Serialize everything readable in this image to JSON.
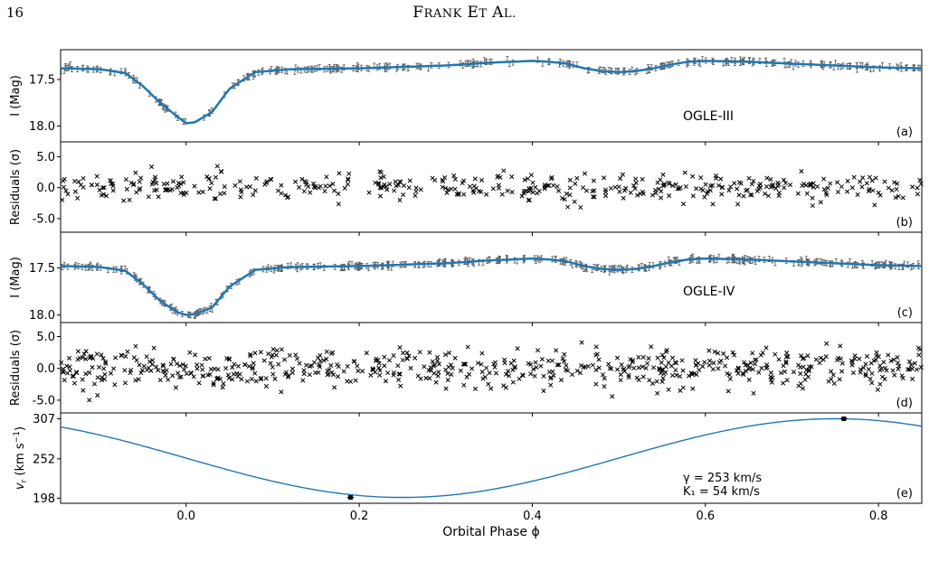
{
  "page_header": {
    "page_number": "16",
    "running_head": "Frank et al."
  },
  "chart_data": [
    {
      "type": "line",
      "panel_label": "(a)",
      "annotation": "OGLE-III",
      "ylabel": "I (Mag)",
      "yticks": [
        "17.5",
        "18.0"
      ],
      "ylim": [
        18.17,
        17.18
      ],
      "xlim": [
        -0.145,
        0.85
      ],
      "series": [
        {
          "values_x": [
            -0.14,
            -0.1,
            -0.07,
            -0.05,
            -0.03,
            -0.01,
            0.0,
            0.01,
            0.03,
            0.05,
            0.08,
            0.12,
            0.2,
            0.3,
            0.35,
            0.4,
            0.42,
            0.44,
            0.46,
            0.48,
            0.5,
            0.52,
            0.54,
            0.56,
            0.58,
            0.6,
            0.65,
            0.7,
            0.75,
            0.8,
            0.85
          ],
          "values_y": [
            17.38,
            17.39,
            17.43,
            17.57,
            17.75,
            17.9,
            17.97,
            17.96,
            17.85,
            17.6,
            17.42,
            17.39,
            17.38,
            17.35,
            17.32,
            17.3,
            17.31,
            17.33,
            17.38,
            17.41,
            17.42,
            17.41,
            17.38,
            17.34,
            17.31,
            17.3,
            17.31,
            17.33,
            17.35,
            17.37,
            17.38
          ]
        }
      ]
    },
    {
      "type": "scatter",
      "panel_label": "(b)",
      "ylabel": "Residuals (σ)",
      "yticks": [
        "5.0",
        "0.0",
        "-5.0"
      ],
      "ylim": [
        -7.2,
        7.4
      ],
      "xlim": [
        -0.145,
        0.85
      ]
    },
    {
      "type": "line",
      "panel_label": "(c)",
      "annotation": "OGLE-IV",
      "ylabel": "I (Mag)",
      "yticks": [
        "17.5",
        "18.0"
      ],
      "ylim": [
        18.08,
        17.12
      ],
      "xlim": [
        -0.145,
        0.85
      ],
      "series": [
        {
          "values_x": [
            -0.14,
            -0.1,
            -0.07,
            -0.05,
            -0.03,
            -0.01,
            0.0,
            0.01,
            0.03,
            0.05,
            0.08,
            0.12,
            0.2,
            0.3,
            0.35,
            0.4,
            0.42,
            0.44,
            0.46,
            0.48,
            0.5,
            0.52,
            0.54,
            0.56,
            0.58,
            0.6,
            0.65,
            0.7,
            0.75,
            0.8,
            0.85
          ],
          "values_y": [
            17.48,
            17.49,
            17.53,
            17.67,
            17.85,
            17.97,
            18.0,
            17.99,
            17.92,
            17.7,
            17.52,
            17.49,
            17.48,
            17.45,
            17.42,
            17.4,
            17.41,
            17.43,
            17.48,
            17.51,
            17.52,
            17.51,
            17.48,
            17.44,
            17.41,
            17.4,
            17.41,
            17.43,
            17.45,
            17.47,
            17.48
          ]
        }
      ]
    },
    {
      "type": "scatter",
      "panel_label": "(d)",
      "ylabel": "Residuals (σ)",
      "yticks": [
        "5.0",
        "0.0",
        "-5.0"
      ],
      "ylim": [
        -7.0,
        7.2
      ],
      "xlim": [
        -0.145,
        0.85
      ]
    },
    {
      "type": "line",
      "panel_label": "(e)",
      "ylabel": "v_r (km s^-1)",
      "yticks": [
        "307",
        "252",
        "198"
      ],
      "ylim": [
        191,
        315
      ],
      "xlim": [
        -0.145,
        0.85
      ],
      "xticks": [
        "0.0",
        "0.2",
        "0.4",
        "0.6",
        "0.8"
      ],
      "xlabel": "Orbital Phase ϕ",
      "annotation_lines": [
        "γ = 253 km/s",
        "K₁ = 54 km/s"
      ],
      "gamma": 253,
      "K1": 54,
      "points": [
        {
          "x": 0.19,
          "y": 199
        },
        {
          "x": 0.76,
          "y": 307
        }
      ]
    }
  ]
}
